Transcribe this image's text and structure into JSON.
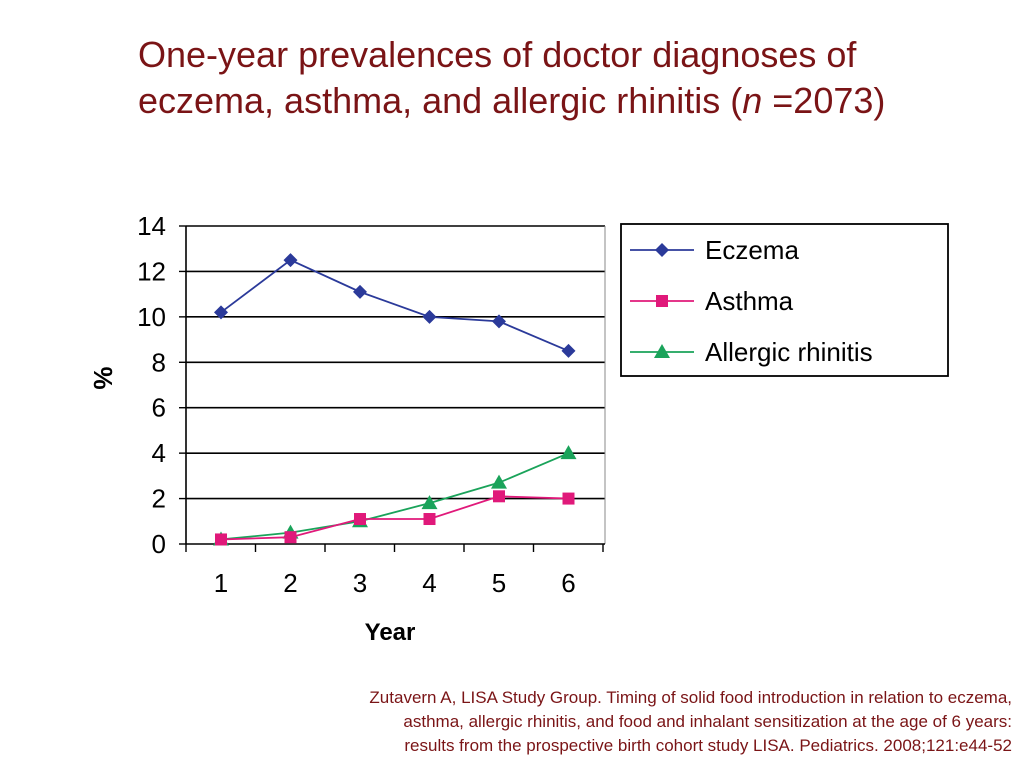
{
  "title": {
    "line1": "One-year prevalences of doctor diagnoses of",
    "line2_prefix": "eczema, asthma, and allergic rhinitis (",
    "n_symbol": "n",
    "line2_suffix": " =2073)"
  },
  "chart_data": {
    "type": "line",
    "xlabel": "Year",
    "ylabel": "%",
    "x": [
      1,
      2,
      3,
      4,
      5,
      6
    ],
    "ylim": [
      0,
      14
    ],
    "yticks": [
      0,
      2,
      4,
      6,
      8,
      10,
      12,
      14
    ],
    "grid": "horizontal",
    "legend_position": "right",
    "series": [
      {
        "name": "Eczema",
        "color": "#2b3a9a",
        "marker": "diamond",
        "values": [
          10.2,
          12.5,
          11.1,
          10.0,
          9.8,
          8.5
        ]
      },
      {
        "name": "Asthma",
        "color": "#e0197a",
        "marker": "square",
        "values": [
          0.2,
          0.3,
          1.1,
          1.1,
          2.1,
          2.0
        ]
      },
      {
        "name": "Allergic rhinitis",
        "color": "#1aa35a",
        "marker": "triangle",
        "values": [
          0.2,
          0.5,
          1.0,
          1.8,
          2.7,
          4.0
        ]
      }
    ]
  },
  "citation": {
    "line1": "Zutavern A, LISA Study Group. Timing of solid food introduction in relation to eczema,",
    "line2": "asthma, allergic rhinitis, and food and inhalant sensitization at the age of 6 years:",
    "line3": "results from the prospective birth cohort study LISA. Pediatrics. 2008;121:e44-52"
  }
}
